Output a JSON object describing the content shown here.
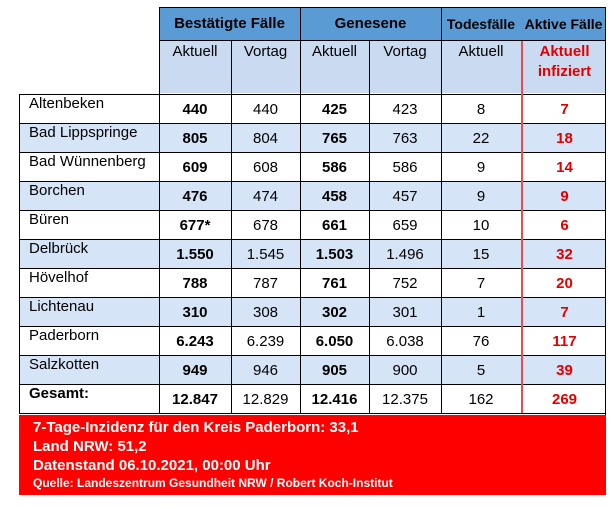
{
  "header": {
    "group1": "Bestätigte Fälle",
    "group2": "Genesene",
    "group3": "Todesfälle",
    "group4": "Aktive Fälle",
    "sub_aktuell": "Aktuell",
    "sub_vortag": "Vortag",
    "sub_aktuell_infiziert_1": "Aktuell",
    "sub_aktuell_infiziert_2": "infiziert"
  },
  "rows": [
    {
      "name": "Altenbeken",
      "bf_a": "440",
      "bf_v": "440",
      "g_a": "425",
      "g_v": "423",
      "tod": "8",
      "akt": "7"
    },
    {
      "name": "Bad Lippspringe",
      "bf_a": "805",
      "bf_v": "804",
      "g_a": "765",
      "g_v": "763",
      "tod": "22",
      "akt": "18"
    },
    {
      "name": "Bad Wünnenberg",
      "bf_a": "609",
      "bf_v": "608",
      "g_a": "586",
      "g_v": "586",
      "tod": "9",
      "akt": "14"
    },
    {
      "name": "Borchen",
      "bf_a": "476",
      "bf_v": "474",
      "g_a": "458",
      "g_v": "457",
      "tod": "9",
      "akt": "9"
    },
    {
      "name": "Büren",
      "bf_a": "677*",
      "bf_v": "678",
      "g_a": "661",
      "g_v": "659",
      "tod": "10",
      "akt": "6"
    },
    {
      "name": "Delbrück",
      "bf_a": "1.550",
      "bf_v": "1.545",
      "g_a": "1.503",
      "g_v": "1.496",
      "tod": "15",
      "akt": "32"
    },
    {
      "name": "Hövelhof",
      "bf_a": "788",
      "bf_v": "787",
      "g_a": "761",
      "g_v": "752",
      "tod": "7",
      "akt": "20"
    },
    {
      "name": "Lichtenau",
      "bf_a": "310",
      "bf_v": "308",
      "g_a": "302",
      "g_v": "301",
      "tod": "1",
      "akt": "7"
    },
    {
      "name": "Paderborn",
      "bf_a": "6.243",
      "bf_v": "6.239",
      "g_a": "6.050",
      "g_v": "6.038",
      "tod": "76",
      "akt": "117"
    },
    {
      "name": "Salzkotten",
      "bf_a": "949",
      "bf_v": "946",
      "g_a": "905",
      "g_v": "900",
      "tod": "5",
      "akt": "39"
    },
    {
      "name": "Gesamt:",
      "bf_a": "12.847",
      "bf_v": "12.829",
      "g_a": "12.416",
      "g_v": "12.375",
      "tod": "162",
      "akt": "269"
    }
  ],
  "footer": {
    "line1": "7-Tage-Inzidenz für den Kreis Paderborn: 33,1",
    "line2": "Land NRW: 51,2",
    "line3": "Datenstand 06.10.2021, 00:00 Uhr",
    "source": "Quelle: Landeszentrum Gesundheit NRW / Robert Koch-Institut"
  },
  "colors": {
    "header_blue": "#5b9bd5",
    "row_light": "#d6e4f7",
    "footer_red": "#ff0000",
    "active_red": "#e00000"
  }
}
